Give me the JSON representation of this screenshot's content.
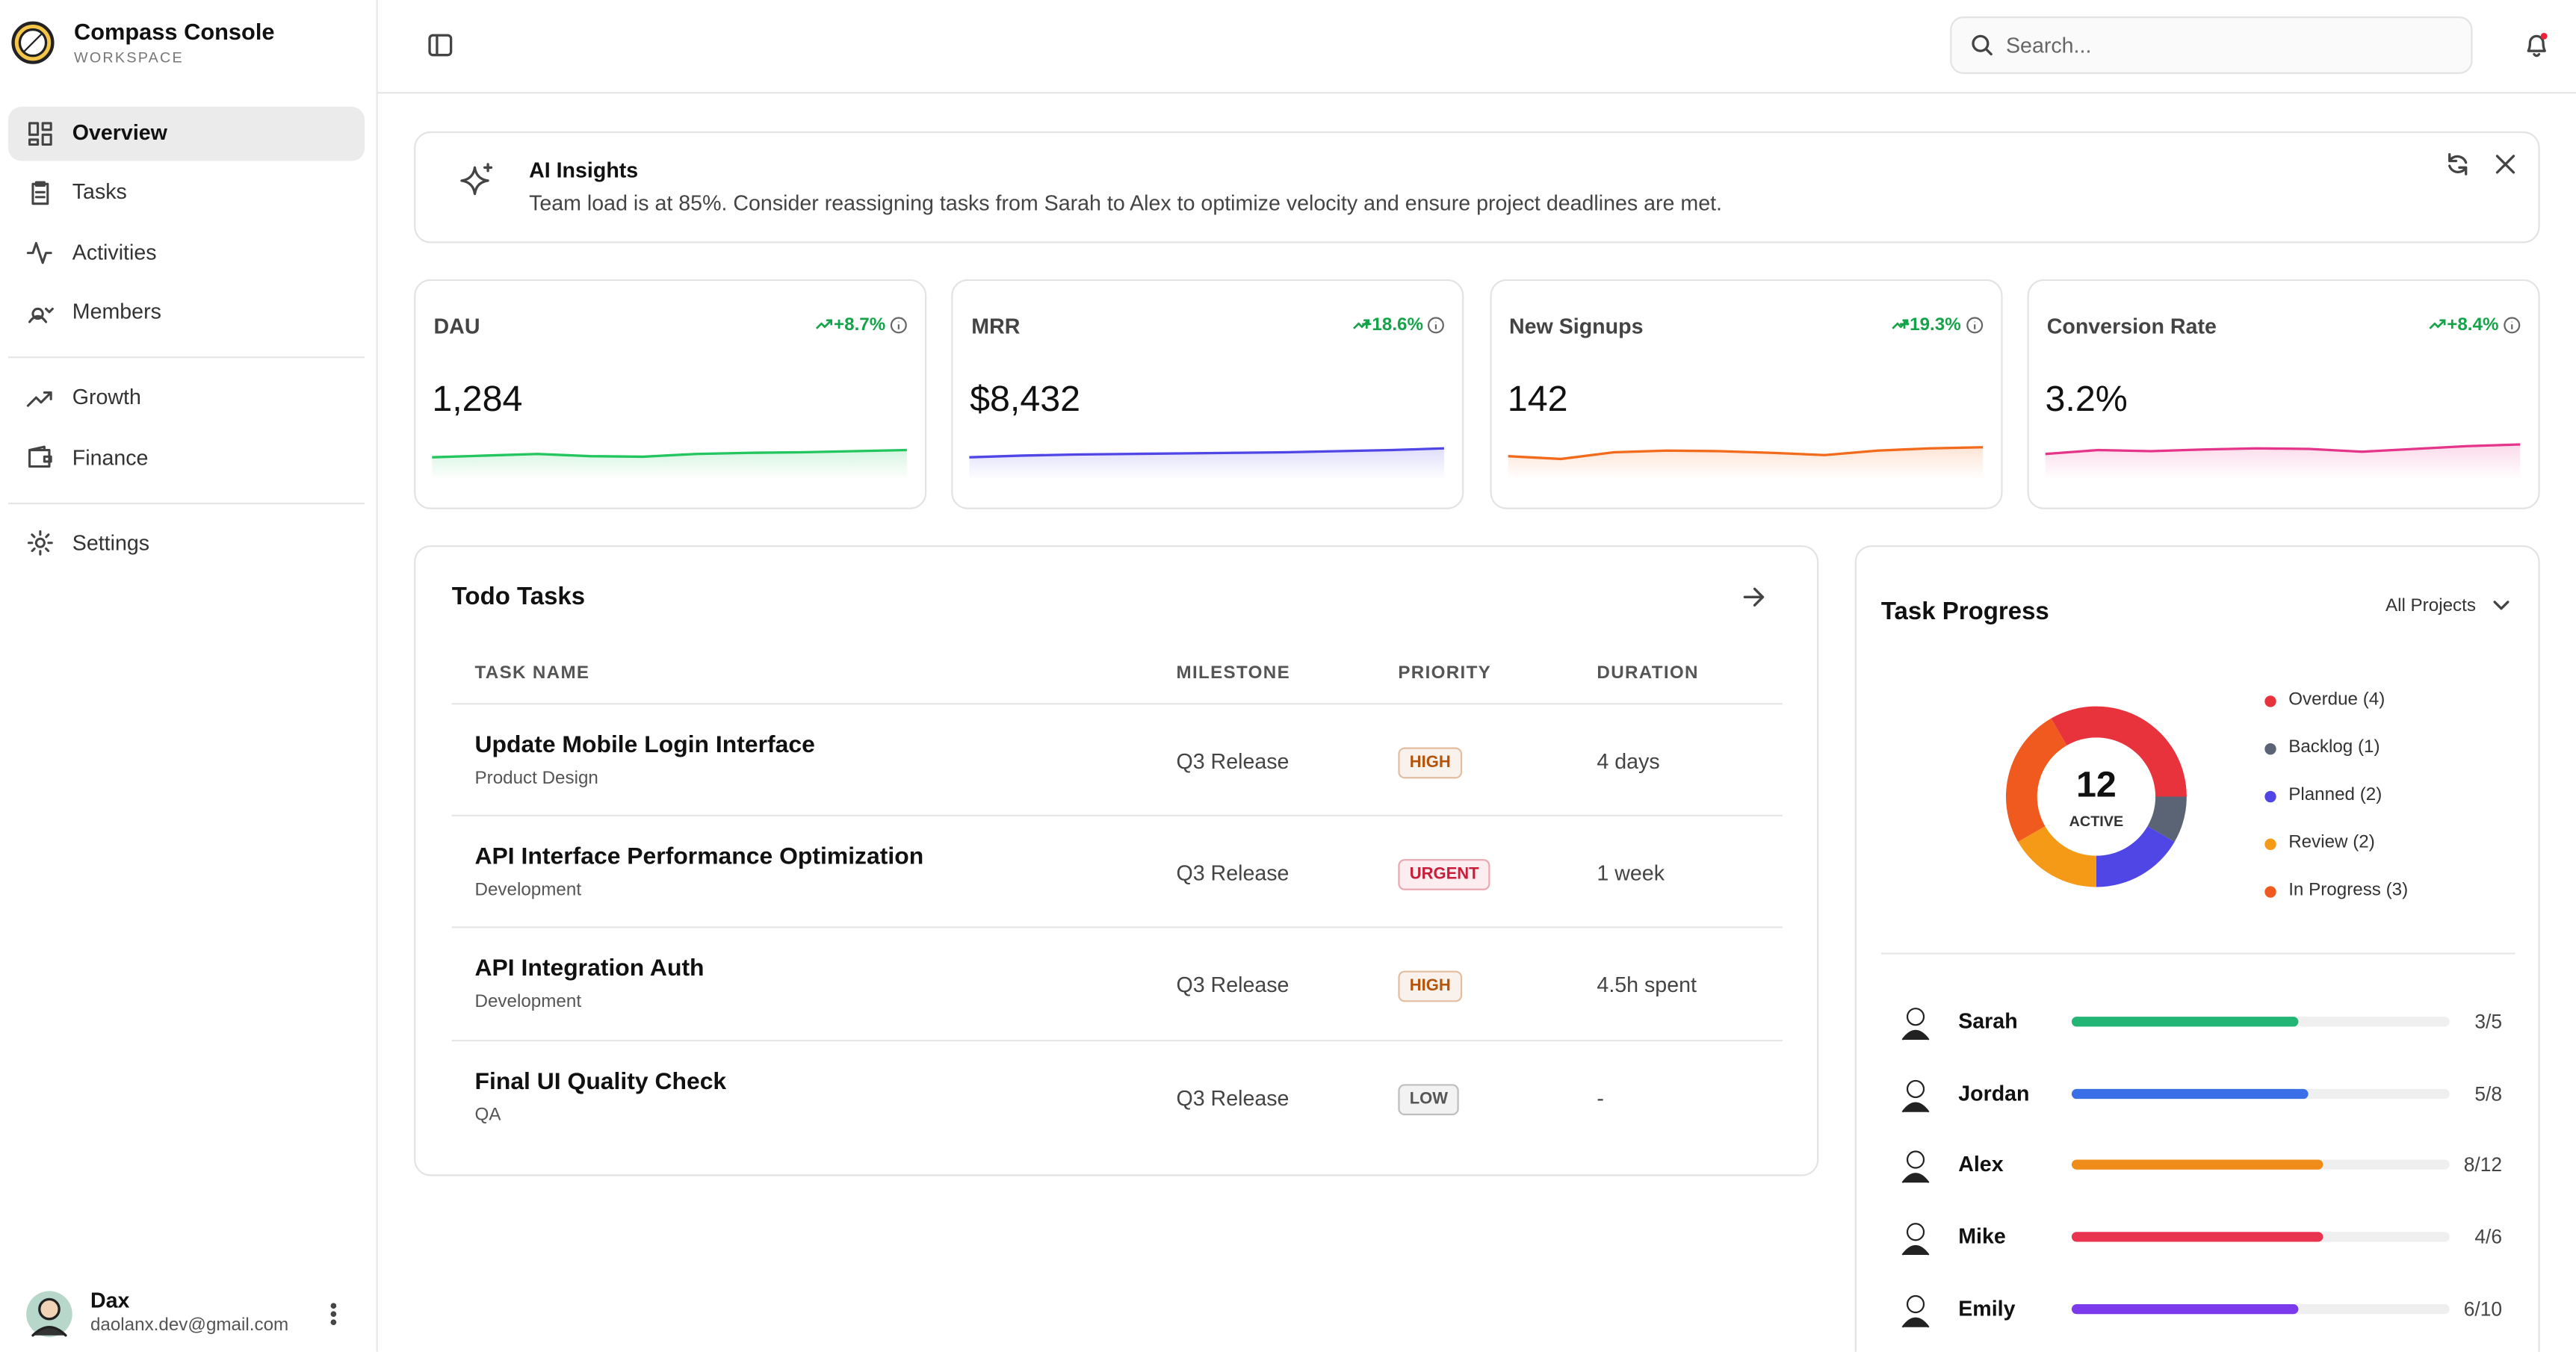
{
  "app": {
    "name": "Compass Console",
    "subtitle": "WORKSPACE"
  },
  "nav": [
    [
      "Overview",
      "Tasks",
      "Activities",
      "Members"
    ],
    [
      "Growth",
      "Finance"
    ],
    [
      "Settings"
    ]
  ],
  "user": {
    "name": "Dax",
    "email": "daolanx.dev@gmail.com"
  },
  "search_placeholder": "Search...",
  "insight": {
    "title": "AI Insights",
    "text": "Team load is at 85%. Consider reassigning tasks from Sarah to Alex to optimize velocity and ensure project deadlines are met."
  },
  "kpis": [
    {
      "label": "DAU",
      "change": "+8.7%",
      "value": "1,284",
      "color": "#22c55e",
      "ylim": [
        0,
        10
      ],
      "trend": [
        4,
        4.3,
        4.6,
        4.2,
        4.1,
        4.6,
        4.8,
        4.9,
        5.1,
        5.3
      ]
    },
    {
      "label": "MRR",
      "change": "+18.6%",
      "value": "$8,432",
      "color": "#4f46e5",
      "ylim": [
        0,
        10
      ],
      "trend": [
        4,
        4.3,
        4.5,
        4.6,
        4.7,
        4.8,
        4.9,
        5.1,
        5.3,
        5.6
      ]
    },
    {
      "label": "New Signups",
      "change": "+19.3%",
      "value": "142",
      "color": "#f26a1b",
      "ylim": [
        0,
        10
      ],
      "trend": [
        4.2,
        3.7,
        4.9,
        5.2,
        5.1,
        4.8,
        4.4,
        5.2,
        5.6,
        5.8
      ]
    },
    {
      "label": "Conversion Rate",
      "change": "+8.4%",
      "value": "3.2%",
      "color": "#e5358a",
      "ylim": [
        0,
        10
      ],
      "trend": [
        4.6,
        5.3,
        5.1,
        5.4,
        5.6,
        5.5,
        5.0,
        5.5,
        6.0,
        6.3
      ]
    }
  ],
  "todo": {
    "title": "Todo Tasks",
    "columns": [
      "TASK NAME",
      "MILESTONE",
      "PRIORITY",
      "DURATION"
    ],
    "rows": [
      {
        "name": "Update Mobile Login Interface",
        "category": "Product Design",
        "milestone": "Q3 Release",
        "priority": "HIGH",
        "priority_color": "#b45309",
        "duration": "4 days"
      },
      {
        "name": "API Interface Performance Optimization",
        "category": "Development",
        "milestone": "Q3 Release",
        "priority": "URGENT",
        "priority_color": "#c81e3a",
        "duration": "1 week"
      },
      {
        "name": "API Integration Auth",
        "category": "Development",
        "milestone": "Q3 Release",
        "priority": "HIGH",
        "priority_color": "#b45309",
        "duration": "4.5h spent"
      },
      {
        "name": "Final UI Quality Check",
        "category": "QA",
        "milestone": "Q3 Release",
        "priority": "LOW",
        "priority_color": "#555555",
        "duration": "-"
      }
    ]
  },
  "progress": {
    "title": "Task Progress",
    "filter": "All Projects",
    "total": 12,
    "total_label": "ACTIVE",
    "segments": [
      {
        "label": "Overdue (4)",
        "value": 4,
        "color": "#e8323c"
      },
      {
        "label": "Backlog (1)",
        "value": 1,
        "color": "#5b6475"
      },
      {
        "label": "Planned (2)",
        "value": 2,
        "color": "#4f46e5"
      },
      {
        "label": "Review (2)",
        "value": 2,
        "color": "#f59a16"
      },
      {
        "label": "In Progress (3)",
        "value": 3,
        "color": "#f05a1e"
      }
    ],
    "members": [
      {
        "name": "Sarah",
        "label": "3/5",
        "done": 3,
        "total": 5,
        "color": "#22b573"
      },
      {
        "name": "Jordan",
        "label": "5/8",
        "done": 5,
        "total": 8,
        "color": "#3b6fe8"
      },
      {
        "name": "Alex",
        "label": "8/12",
        "done": 8,
        "total": 12,
        "color": "#f08c1a"
      },
      {
        "name": "Mike",
        "label": "4/6",
        "done": 4,
        "total": 6,
        "color": "#e8344e"
      },
      {
        "name": "Emily",
        "label": "6/10",
        "done": 6,
        "total": 10,
        "color": "#7c3aed"
      }
    ]
  }
}
